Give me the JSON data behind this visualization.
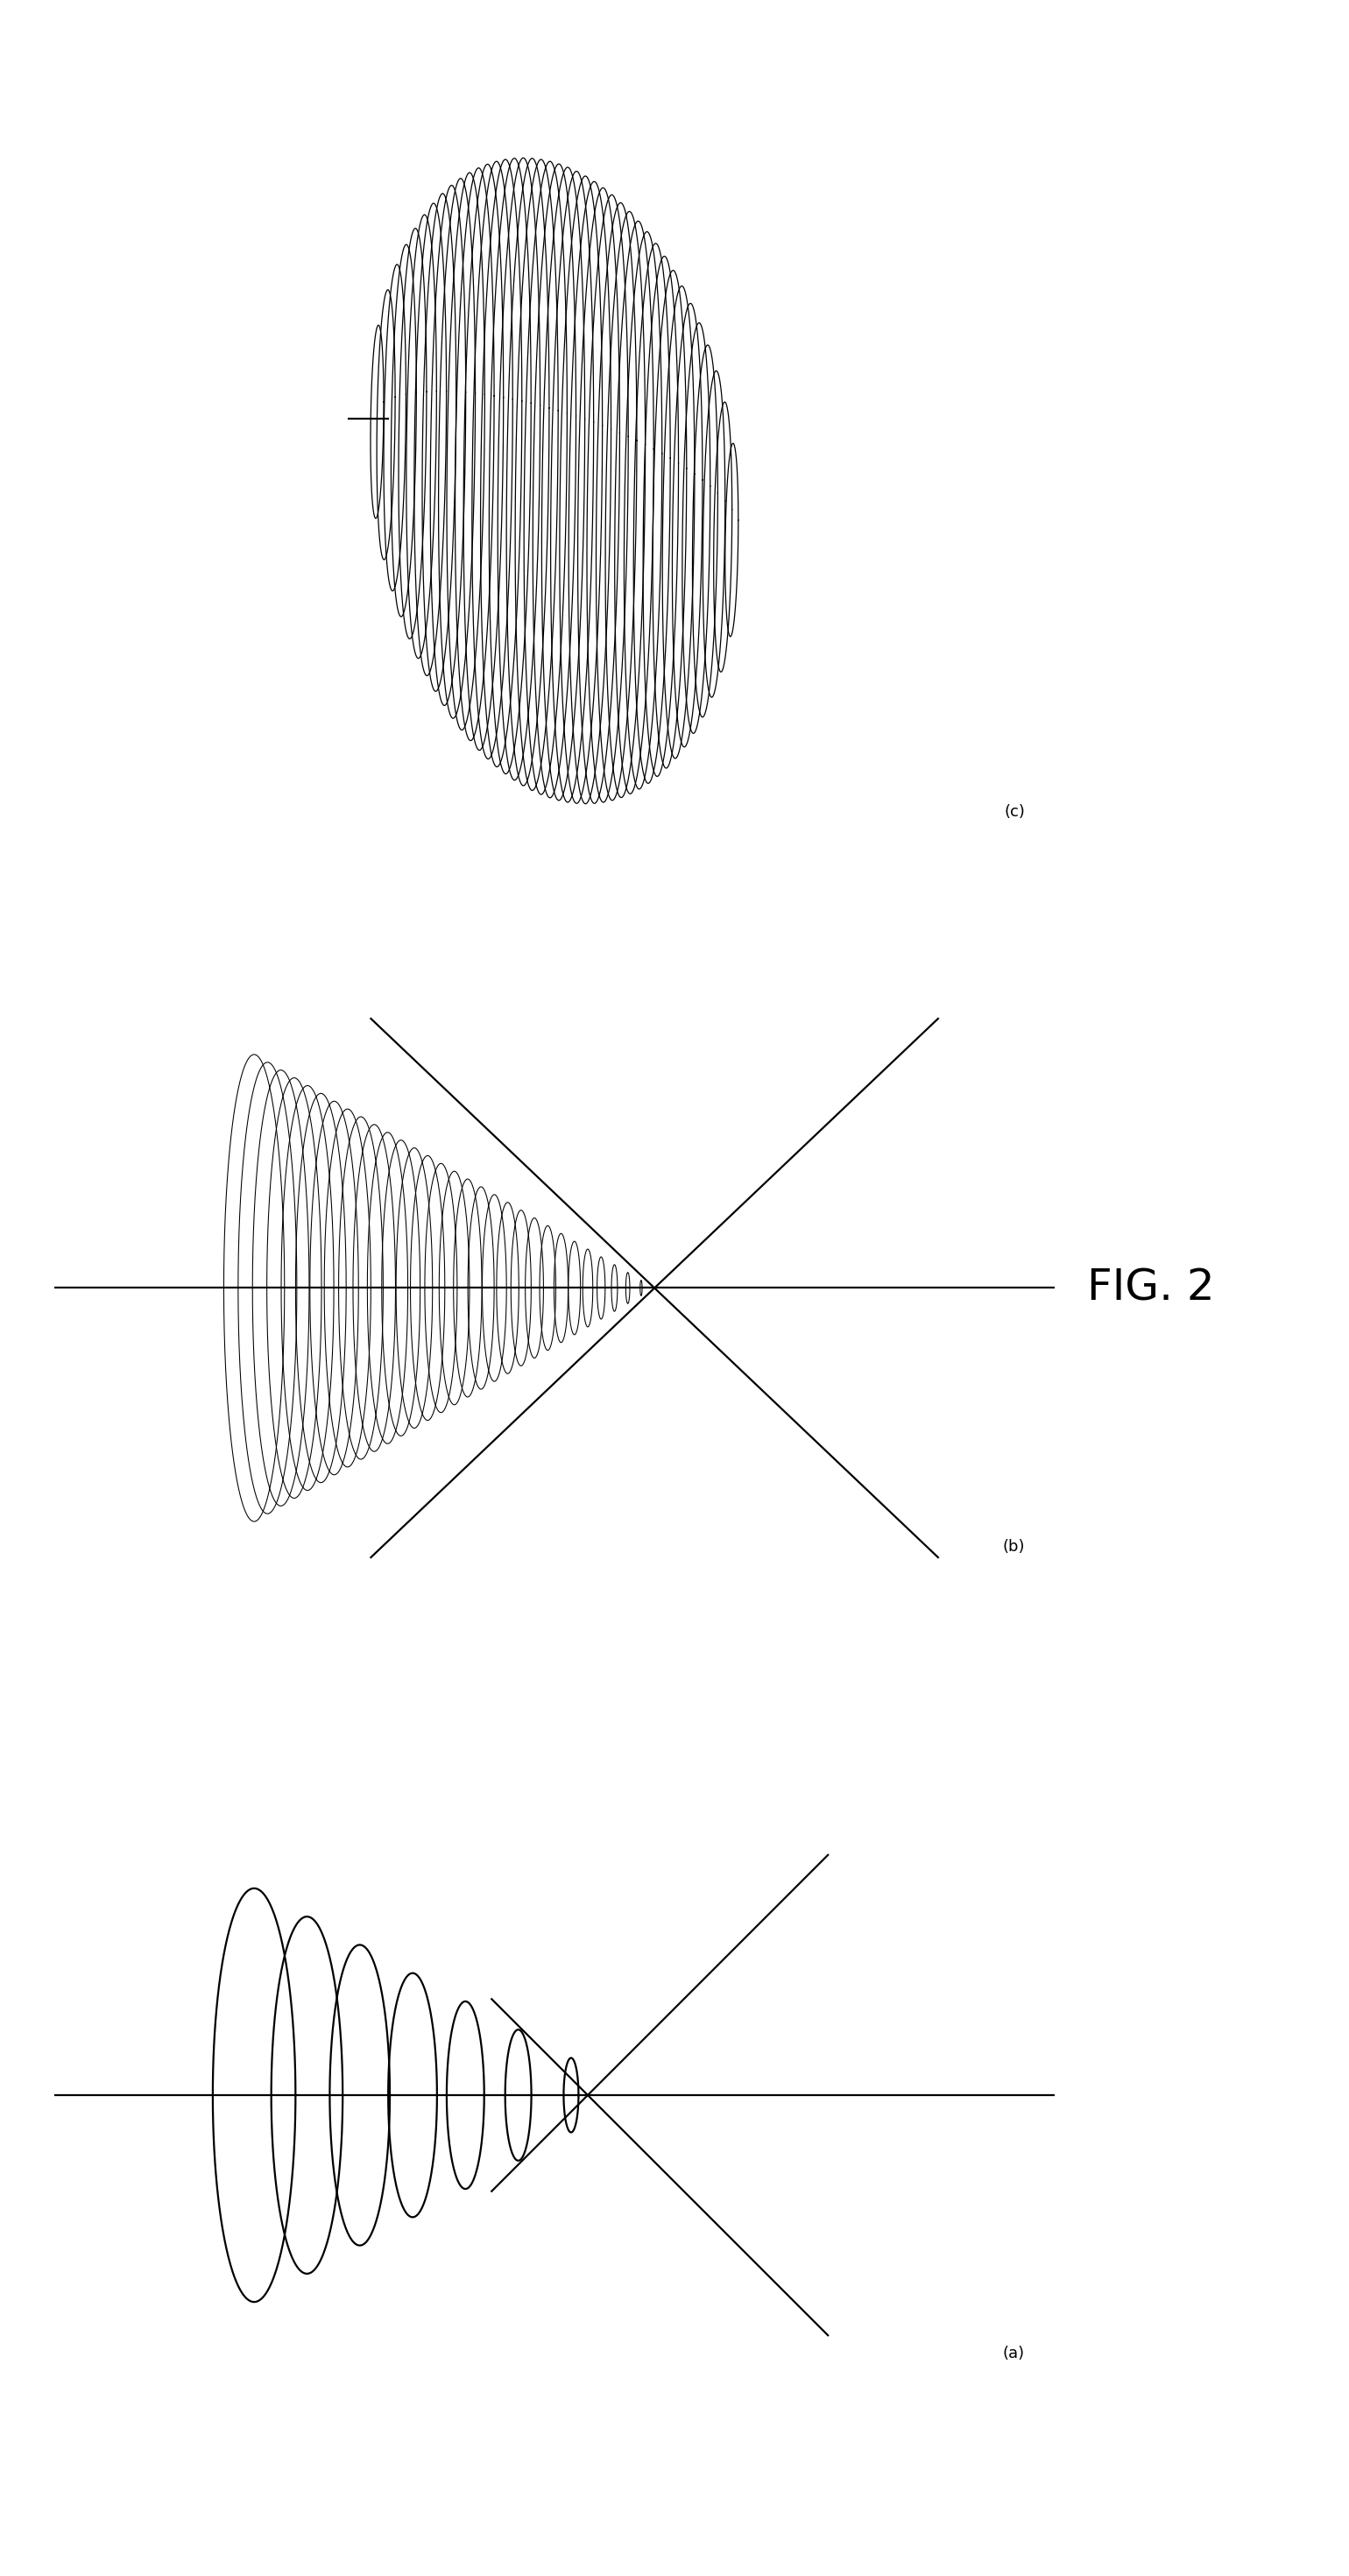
{
  "fig_width": 15.4,
  "fig_height": 29.41,
  "background_color": "#ffffff",
  "line_color": "#000000",
  "lw_thin": 0.9,
  "lw_medium": 1.6,
  "lw_thick": 2.2,
  "label_fontsize": 13,
  "fig2_label": "FIG. 2",
  "panel_labels": [
    "(a)",
    "(b)",
    "(c)"
  ],
  "panel_c_n_rings": 42,
  "panel_b_n_rings": 30,
  "panel_a_n_rings": 7
}
